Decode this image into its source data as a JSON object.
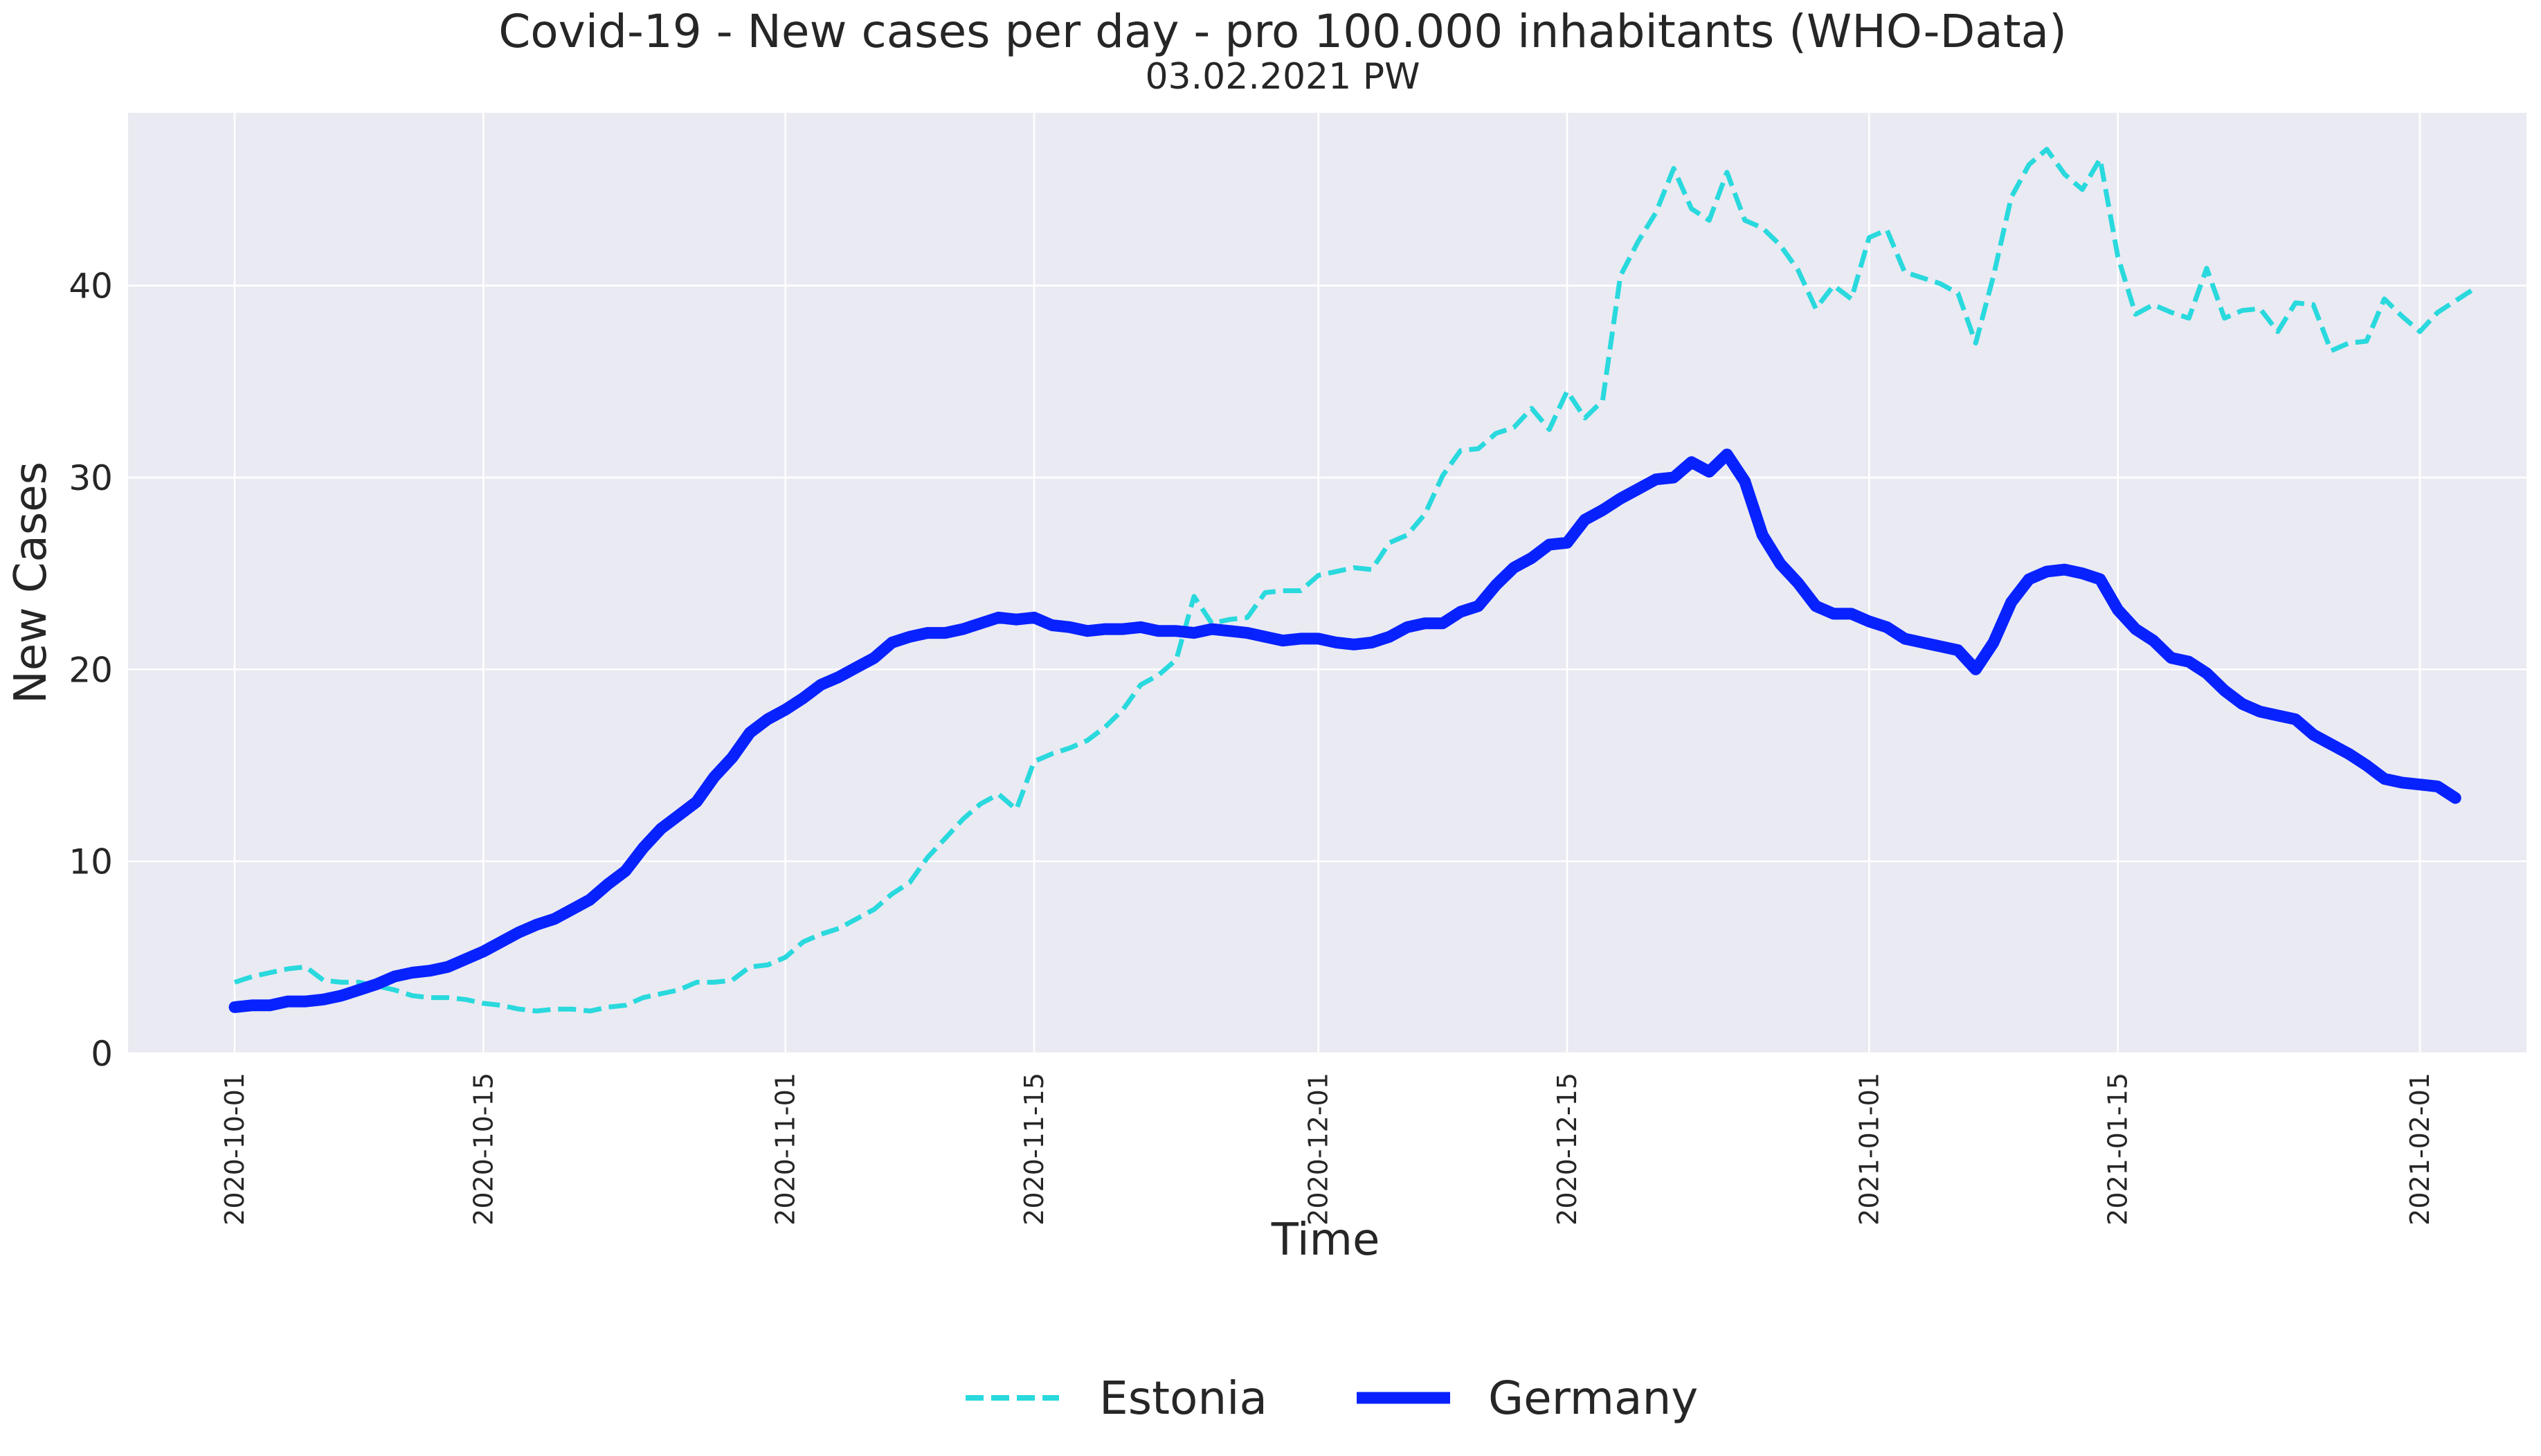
{
  "chart_data": {
    "type": "line",
    "title": "Covid-19 - New cases per day - pro 100.000 inhabitants (WHO-Data)",
    "subtitle": "03.02.2021 PW",
    "xlabel": "Time",
    "ylabel": "New Cases",
    "xlim": [
      "2020-09-25",
      "2021-02-07"
    ],
    "ylim": [
      0,
      49
    ],
    "grid": true,
    "legend_position": "bottom-center",
    "x_tick_labels": [
      "2020-10-01",
      "2020-10-15",
      "2020-11-01",
      "2020-11-15",
      "2020-12-01",
      "2020-12-15",
      "2021-01-01",
      "2021-01-15",
      "2021-02-01"
    ],
    "y_ticks": [
      0,
      10,
      20,
      30,
      40
    ],
    "x_start": "2020-10-01",
    "series": [
      {
        "name": "Estonia",
        "color": "#29D9DD",
        "style": "dashed",
        "values": [
          3.7,
          4.0,
          4.2,
          4.4,
          4.5,
          3.8,
          3.7,
          3.7,
          3.5,
          3.3,
          3.0,
          2.9,
          2.9,
          2.8,
          2.6,
          2.5,
          2.3,
          2.2,
          2.3,
          2.3,
          2.2,
          2.4,
          2.5,
          2.9,
          3.1,
          3.3,
          3.7,
          3.7,
          3.8,
          4.5,
          4.6,
          5.0,
          5.8,
          6.2,
          6.5,
          7.0,
          7.5,
          8.3,
          8.9,
          10.2,
          11.2,
          12.2,
          13.0,
          13.5,
          12.7,
          15.2,
          15.6,
          15.9,
          16.3,
          17.0,
          17.9,
          19.2,
          19.7,
          20.5,
          23.8,
          22.4,
          22.6,
          22.7,
          24.0,
          24.1,
          24.1,
          24.9,
          25.1,
          25.3,
          25.2,
          26.6,
          27.0,
          28.1,
          30.1,
          31.4,
          31.5,
          32.3,
          32.6,
          33.6,
          32.5,
          34.5,
          33.1,
          34.0,
          40.5,
          42.3,
          43.8,
          46.1,
          44.0,
          43.4,
          45.9,
          43.4,
          43.0,
          42.1,
          40.8,
          38.8,
          40.0,
          39.3,
          42.5,
          42.9,
          40.7,
          40.4,
          40.1,
          39.6,
          37.0,
          40.5,
          44.6,
          46.3,
          47.1,
          45.8,
          45.0,
          46.6,
          41.5,
          38.5,
          39.0,
          38.6,
          38.3,
          40.9,
          38.3,
          38.7,
          38.8,
          37.6,
          39.1,
          39.0,
          36.6,
          37.0,
          37.1,
          39.3,
          38.4,
          37.6,
          38.6,
          39.2,
          39.8
        ]
      },
      {
        "name": "Germany",
        "color": "#0722FF",
        "style": "solid",
        "values": [
          2.4,
          2.5,
          2.5,
          2.7,
          2.7,
          2.8,
          3.0,
          3.3,
          3.6,
          4.0,
          4.2,
          4.3,
          4.5,
          4.9,
          5.3,
          5.8,
          6.3,
          6.7,
          7.0,
          7.5,
          8.0,
          8.8,
          9.5,
          10.7,
          11.7,
          12.4,
          13.1,
          14.4,
          15.4,
          16.7,
          17.4,
          17.9,
          18.5,
          19.2,
          19.6,
          20.1,
          20.6,
          21.4,
          21.7,
          21.9,
          21.9,
          22.1,
          22.4,
          22.7,
          22.6,
          22.7,
          22.3,
          22.2,
          22.0,
          22.1,
          22.1,
          22.2,
          22.0,
          22.0,
          21.9,
          22.1,
          22.0,
          21.9,
          21.7,
          21.5,
          21.6,
          21.6,
          21.4,
          21.3,
          21.4,
          21.7,
          22.2,
          22.4,
          22.4,
          23.0,
          23.3,
          24.4,
          25.3,
          25.8,
          26.5,
          26.6,
          27.8,
          28.3,
          28.9,
          29.4,
          29.9,
          30.0,
          30.8,
          30.3,
          31.2,
          29.8,
          27.0,
          25.5,
          24.5,
          23.3,
          22.9,
          22.9,
          22.5,
          22.2,
          21.6,
          21.4,
          21.2,
          21.0,
          20.0,
          21.4,
          23.5,
          24.7,
          25.1,
          25.2,
          25.0,
          24.7,
          23.1,
          22.1,
          21.5,
          20.6,
          20.4,
          19.8,
          18.9,
          18.2,
          17.8,
          17.6,
          17.4,
          16.6,
          16.1,
          15.6,
          15.0,
          14.3,
          14.1,
          14.0,
          13.9,
          13.3
        ]
      }
    ]
  }
}
